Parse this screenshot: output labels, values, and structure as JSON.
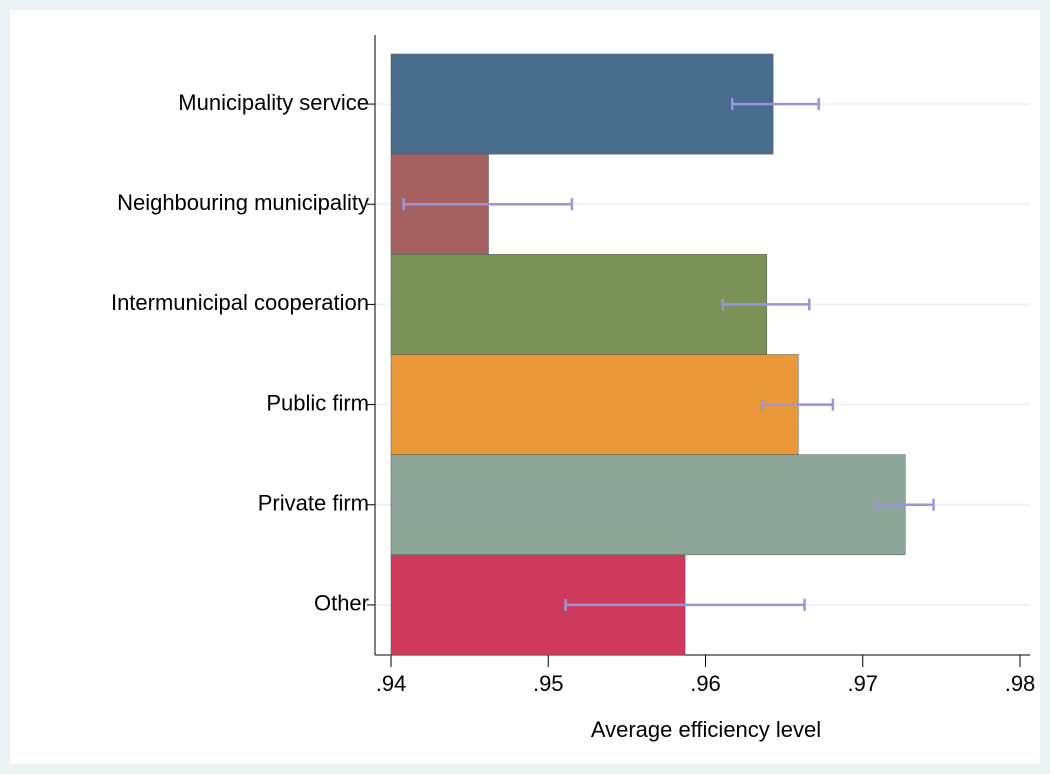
{
  "chart_data": {
    "type": "bar",
    "orientation": "horizontal",
    "x_label": "Average efficiency level",
    "categories": [
      "Municipality service",
      "Neighbouring municipality",
      "Intermunicipal cooperation",
      "Public firm",
      "Private firm",
      "Other"
    ],
    "values": [
      0.9643,
      0.9462,
      0.9639,
      0.9659,
      0.9727,
      0.9587
    ],
    "ci_low": [
      0.9617,
      0.9408,
      0.9611,
      0.9636,
      0.9709,
      0.9511
    ],
    "ci_high": [
      0.9672,
      0.9515,
      0.9666,
      0.9681,
      0.9745,
      0.9663
    ],
    "colors": [
      "#486c8c",
      "#a56060",
      "#7a9158",
      "#ea9837",
      "#8ca69a",
      "#cf3a5c"
    ],
    "error_color": "#9a94d8",
    "xlim": [
      0.94,
      0.98
    ],
    "xticks": [
      {
        "value": 0.94,
        "label": ".94"
      },
      {
        "value": 0.95,
        "label": ".95"
      },
      {
        "value": 0.96,
        "label": ".96"
      },
      {
        "value": 0.97,
        "label": ".97"
      },
      {
        "value": 0.98,
        "label": ".98"
      }
    ],
    "grid": true
  }
}
